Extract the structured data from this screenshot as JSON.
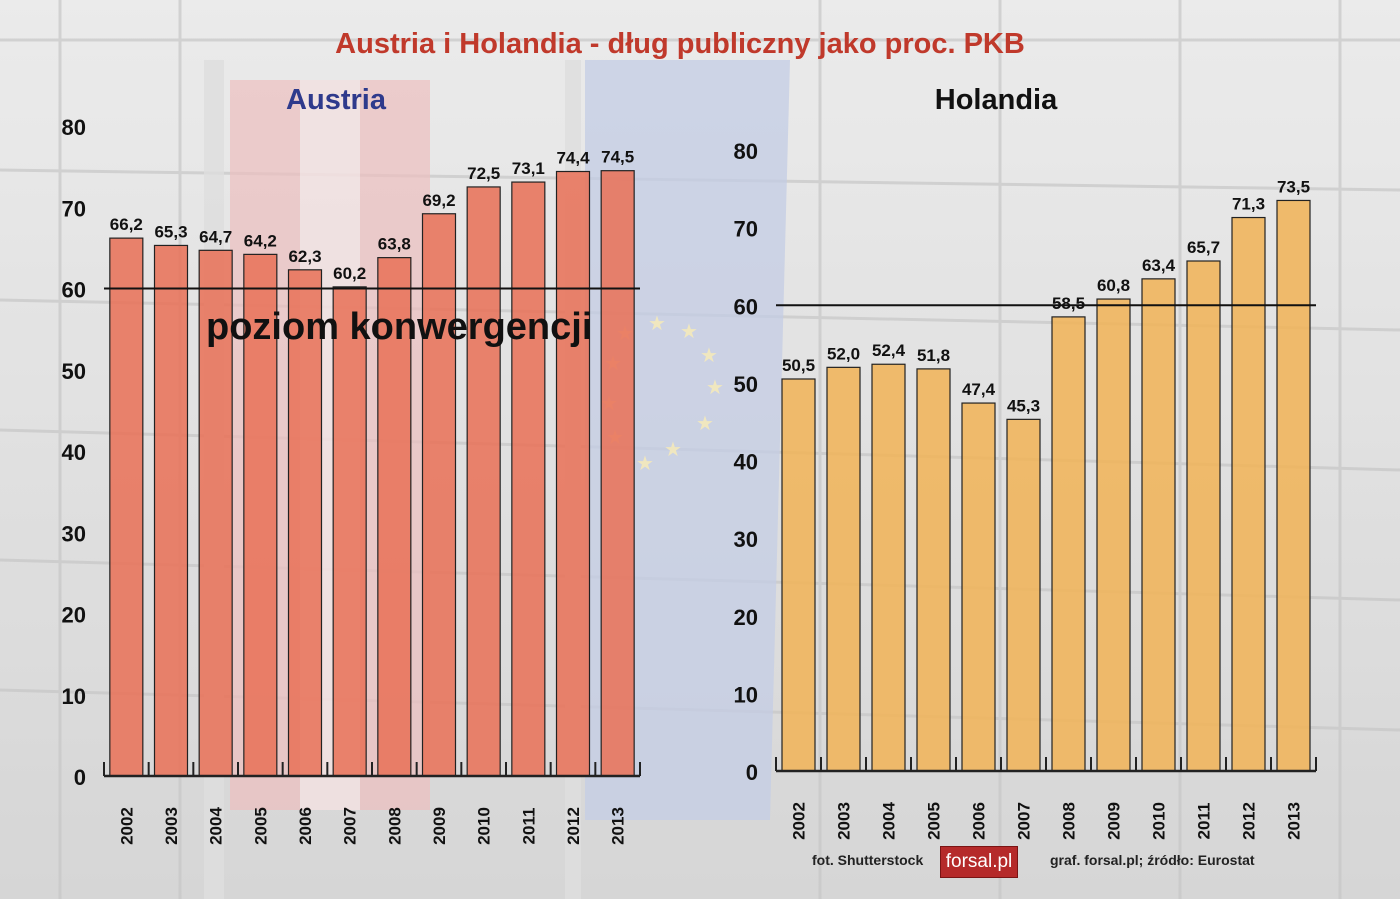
{
  "title": "Austria i Holandia - dług publiczny jako proc. PKB",
  "convergence_label": "poziom konwergencji",
  "footer": {
    "photo_credit": "fot. Shutterstock",
    "logo_text": "forsal.pl",
    "graphic_credit": "graf. forsal.pl;  źródło: Eurostat"
  },
  "colors": {
    "title": "#c0392b",
    "austria_title": "#2e3a8c",
    "austria_bars": "#e8735a",
    "holandia_bars": "#f0b45a"
  },
  "chart_data": [
    {
      "type": "bar",
      "title": "Austria",
      "categories": [
        "2002",
        "2003",
        "2004",
        "2005",
        "2006",
        "2007",
        "2008",
        "2009",
        "2010",
        "2011",
        "2012",
        "2013"
      ],
      "values": [
        66.2,
        65.3,
        64.7,
        64.2,
        62.3,
        60.2,
        63.8,
        69.2,
        72.5,
        73.1,
        74.4,
        74.5
      ],
      "value_labels": [
        "66,2",
        "65,3",
        "64,7",
        "64,2",
        "62,3",
        "60,2",
        "63,8",
        "69,2",
        "72,5",
        "73,1",
        "74,4",
        "74,5"
      ],
      "ylim": [
        0,
        80
      ],
      "yticks": [
        0,
        10,
        20,
        30,
        40,
        50,
        60,
        70,
        80
      ],
      "reference_line": 60,
      "grid": false
    },
    {
      "type": "bar",
      "title": "Holandia",
      "categories": [
        "2002",
        "2003",
        "2004",
        "2005",
        "2006",
        "2007",
        "2008",
        "2009",
        "2010",
        "2011",
        "2012",
        "2013"
      ],
      "values": [
        50.5,
        52.0,
        52.4,
        51.8,
        47.4,
        45.3,
        58.5,
        60.8,
        63.4,
        65.7,
        71.3,
        73.5
      ],
      "value_labels": [
        "50,5",
        "52,0",
        "52,4",
        "51,8",
        "47,4",
        "45,3",
        "58,5",
        "60,8",
        "63,4",
        "65,7",
        "71,3",
        "73,5"
      ],
      "ylim": [
        0,
        80
      ],
      "yticks": [
        0,
        10,
        20,
        30,
        40,
        50,
        60,
        70,
        80
      ],
      "reference_line": 60,
      "grid": false
    }
  ]
}
